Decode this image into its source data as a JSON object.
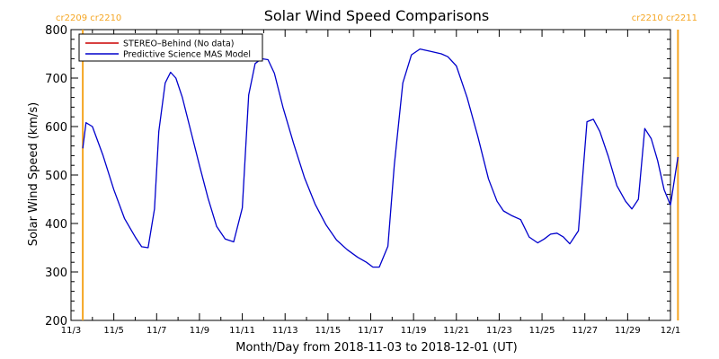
{
  "chart_data": {
    "type": "line",
    "title": "Solar Wind Speed Comparisons",
    "xlabel": "Month/Day from 2018-11-03 to 2018-12-01 (UT)",
    "ylabel": "Solar Wind Speed (km/s)",
    "xlim": [
      0,
      28
    ],
    "ylim": [
      200,
      800
    ],
    "x_ticks": [
      {
        "day": 0,
        "label": "11/3"
      },
      {
        "day": 2,
        "label": "11/5"
      },
      {
        "day": 4,
        "label": "11/7"
      },
      {
        "day": 6,
        "label": "11/9"
      },
      {
        "day": 8,
        "label": "11/11"
      },
      {
        "day": 10,
        "label": "11/13"
      },
      {
        "day": 12,
        "label": "11/15"
      },
      {
        "day": 14,
        "label": "11/17"
      },
      {
        "day": 16,
        "label": "11/19"
      },
      {
        "day": 18,
        "label": "11/21"
      },
      {
        "day": 20,
        "label": "11/23"
      },
      {
        "day": 22,
        "label": "11/25"
      },
      {
        "day": 24,
        "label": "11/27"
      },
      {
        "day": 26,
        "label": "11/29"
      },
      {
        "day": 28,
        "label": "12/1"
      }
    ],
    "y_ticks": [
      200,
      300,
      400,
      500,
      600,
      700,
      800
    ],
    "carrington_markers": [
      {
        "day": 0.55,
        "label": "cr2209 cr2210",
        "color": "#F5A623",
        "label_side": "left"
      },
      {
        "day": 28.35,
        "label": "cr2210 cr2211",
        "color": "#F5A623",
        "label_side": "right"
      }
    ],
    "series": [
      {
        "name": "STEREO–Behind (No data)",
        "color": "#CC0000",
        "x": [],
        "y": []
      },
      {
        "name": "Predictive Science MAS Model",
        "color": "#0000CC",
        "x": [
          0.55,
          0.7,
          1.0,
          1.5,
          2.0,
          2.5,
          3.0,
          3.3,
          3.6,
          3.9,
          4.1,
          4.4,
          4.65,
          4.9,
          5.2,
          5.6,
          6.0,
          6.4,
          6.8,
          7.2,
          7.6,
          8.0,
          8.3,
          8.6,
          8.9,
          9.2,
          9.5,
          9.9,
          10.4,
          10.9,
          11.4,
          11.9,
          12.4,
          12.9,
          13.4,
          13.8,
          14.1,
          14.4,
          14.8,
          15.1,
          15.5,
          15.9,
          16.3,
          16.8,
          17.3,
          17.6,
          18.0,
          18.5,
          19.0,
          19.5,
          19.9,
          20.2,
          20.6,
          21.0,
          21.4,
          21.8,
          22.1,
          22.4,
          22.7,
          23.0,
          23.3,
          23.7,
          24.1,
          24.4,
          24.7,
          25.1,
          25.5,
          25.9,
          26.2,
          26.5,
          26.8,
          27.1,
          27.4,
          27.7,
          28.0,
          28.35
        ],
        "y": [
          555,
          608,
          600,
          540,
          470,
          410,
          372,
          352,
          350,
          430,
          590,
          690,
          712,
          700,
          660,
          590,
          520,
          452,
          394,
          368,
          362,
          432,
          665,
          730,
          740,
          738,
          710,
          640,
          565,
          495,
          440,
          398,
          366,
          346,
          330,
          320,
          310,
          310,
          353,
          520,
          690,
          748,
          760,
          755,
          750,
          744,
          725,
          660,
          580,
          492,
          446,
          426,
          416,
          408,
          372,
          360,
          368,
          378,
          380,
          372,
          358,
          385,
          610,
          615,
          590,
          538,
          478,
          446,
          430,
          450,
          596,
          575,
          530,
          470,
          438,
          537
        ]
      }
    ],
    "legend": {
      "placement": "top-left",
      "boxed": true
    },
    "grid": false
  }
}
